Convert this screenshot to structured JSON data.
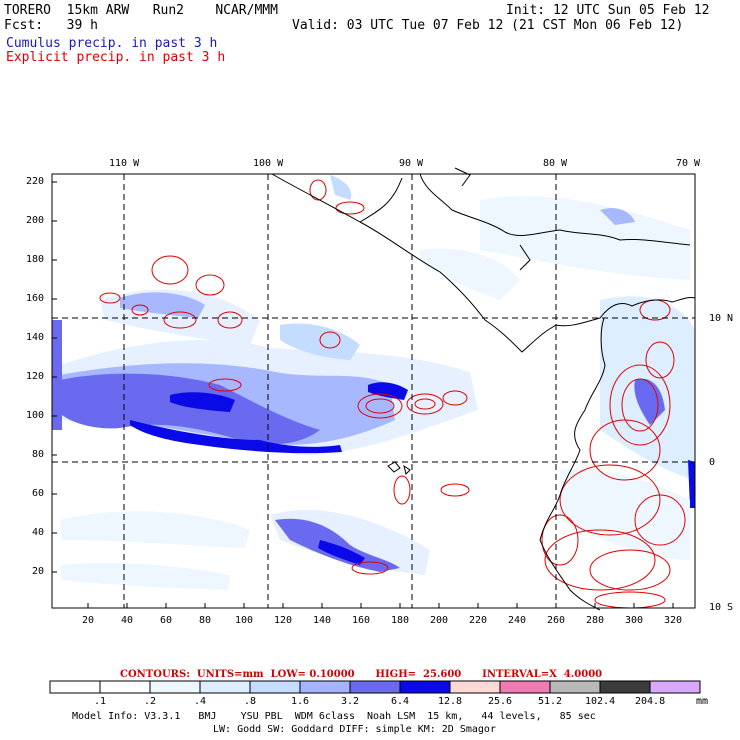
{
  "header": {
    "model_line": "TORERO  15km ARW   Run2    NCAR/MMM",
    "init": "Init: 12 UTC Sun 05 Feb 12",
    "fcst": "Fcst:   39 h",
    "valid": "Valid: 03 UTC Tue 07 Feb 12 (21 CST Mon 06 Feb 12)",
    "cumulus": "Cumulus precip. in past 3 h",
    "explicit": "Explicit precip. in past 3 h"
  },
  "map": {
    "lon_labels": [
      "110 W",
      "100 W",
      "90 W",
      "80 W",
      "70 W"
    ],
    "lat_labels": [
      "10 N",
      "0",
      "10 S"
    ],
    "y_ticks": [
      "220",
      "200",
      "180",
      "160",
      "140",
      "120",
      "100",
      "80",
      "60",
      "40",
      "20"
    ],
    "x_ticks": [
      "20",
      "40",
      "60",
      "80",
      "100",
      "120",
      "140",
      "160",
      "180",
      "200",
      "220",
      "240",
      "260",
      "280",
      "300",
      "320"
    ]
  },
  "contours": "CONTOURS:  UNITS=mm  LOW= 0.10000      HIGH=  25.600      INTERVAL=X  4.0000",
  "colorbar": {
    "labels": [
      ".1",
      ".2",
      ".4",
      ".8",
      "1.6",
      "3.2",
      "6.4",
      "12.8",
      "25.6",
      "51.2",
      "102.4",
      "204.8"
    ],
    "unit": "mm",
    "colors": [
      "#ffffff",
      "#ffffff",
      "#eef6ff",
      "#dceeff",
      "#c4dcff",
      "#a4b4ff",
      "#6a6af0",
      "#0a0ae8",
      "#ffd8d8",
      "#f07cb4",
      "#b8b8b8",
      "#3c3c3c",
      "#d8a8ff"
    ]
  },
  "footer": {
    "line1": "Model Info: V3.3.1   BMJ    YSU PBL  WDM 6class  Noah LSM  15 km,   44 levels,   85 sec",
    "line2": "LW: Godd SW: Goddard DIFF: simple KM: 2D Smagor"
  }
}
